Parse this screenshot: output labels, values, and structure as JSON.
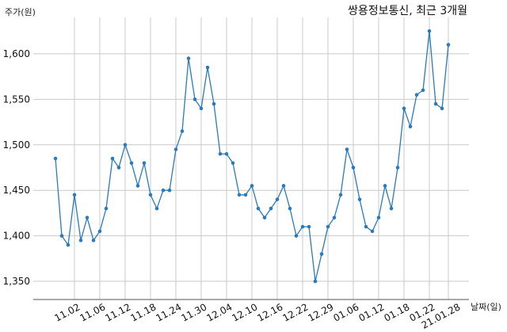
{
  "chart_data": {
    "type": "line",
    "title": "쌍용정보통신, 최근 3개월",
    "ylabel": "주가(원)",
    "xlabel": "날짜(일)",
    "ylim": [
      1330,
      1640
    ],
    "yticks": [
      1350,
      1400,
      1450,
      1500,
      1550,
      1600
    ],
    "ytick_labels": [
      "1,350",
      "1,400",
      "1,450",
      "1,500",
      "1,550",
      "1,600"
    ],
    "grid": true,
    "series_color": "#2b7bb9",
    "xtick_indices": [
      3,
      7,
      11,
      15,
      19,
      23,
      27,
      31,
      35,
      39,
      43,
      47,
      51,
      55,
      59
    ],
    "xtick_labels": [
      "11.02",
      "11.06",
      "11.12",
      "11.18",
      "11.24",
      "11.30",
      "12.04",
      "12.10",
      "12.16",
      "12.22",
      "12.29",
      "01.06",
      "01.12",
      "01.18",
      "01.22"
    ],
    "last_label": "21.01.28",
    "values": [
      1485,
      1400,
      1390,
      1445,
      1395,
      1420,
      1395,
      1405,
      1430,
      1485,
      1475,
      1500,
      1480,
      1455,
      1480,
      1445,
      1430,
      1450,
      1450,
      1495,
      1515,
      1595,
      1550,
      1540,
      1585,
      1545,
      1490,
      1490,
      1480,
      1445,
      1445,
      1455,
      1430,
      1420,
      1430,
      1440,
      1455,
      1430,
      1400,
      1410,
      1410,
      1350,
      1380,
      1410,
      1420,
      1445,
      1495,
      1475,
      1440,
      1410,
      1405,
      1420,
      1455,
      1430,
      1475,
      1540,
      1520,
      1555,
      1560,
      1625,
      1545,
      1540,
      1610
    ]
  }
}
